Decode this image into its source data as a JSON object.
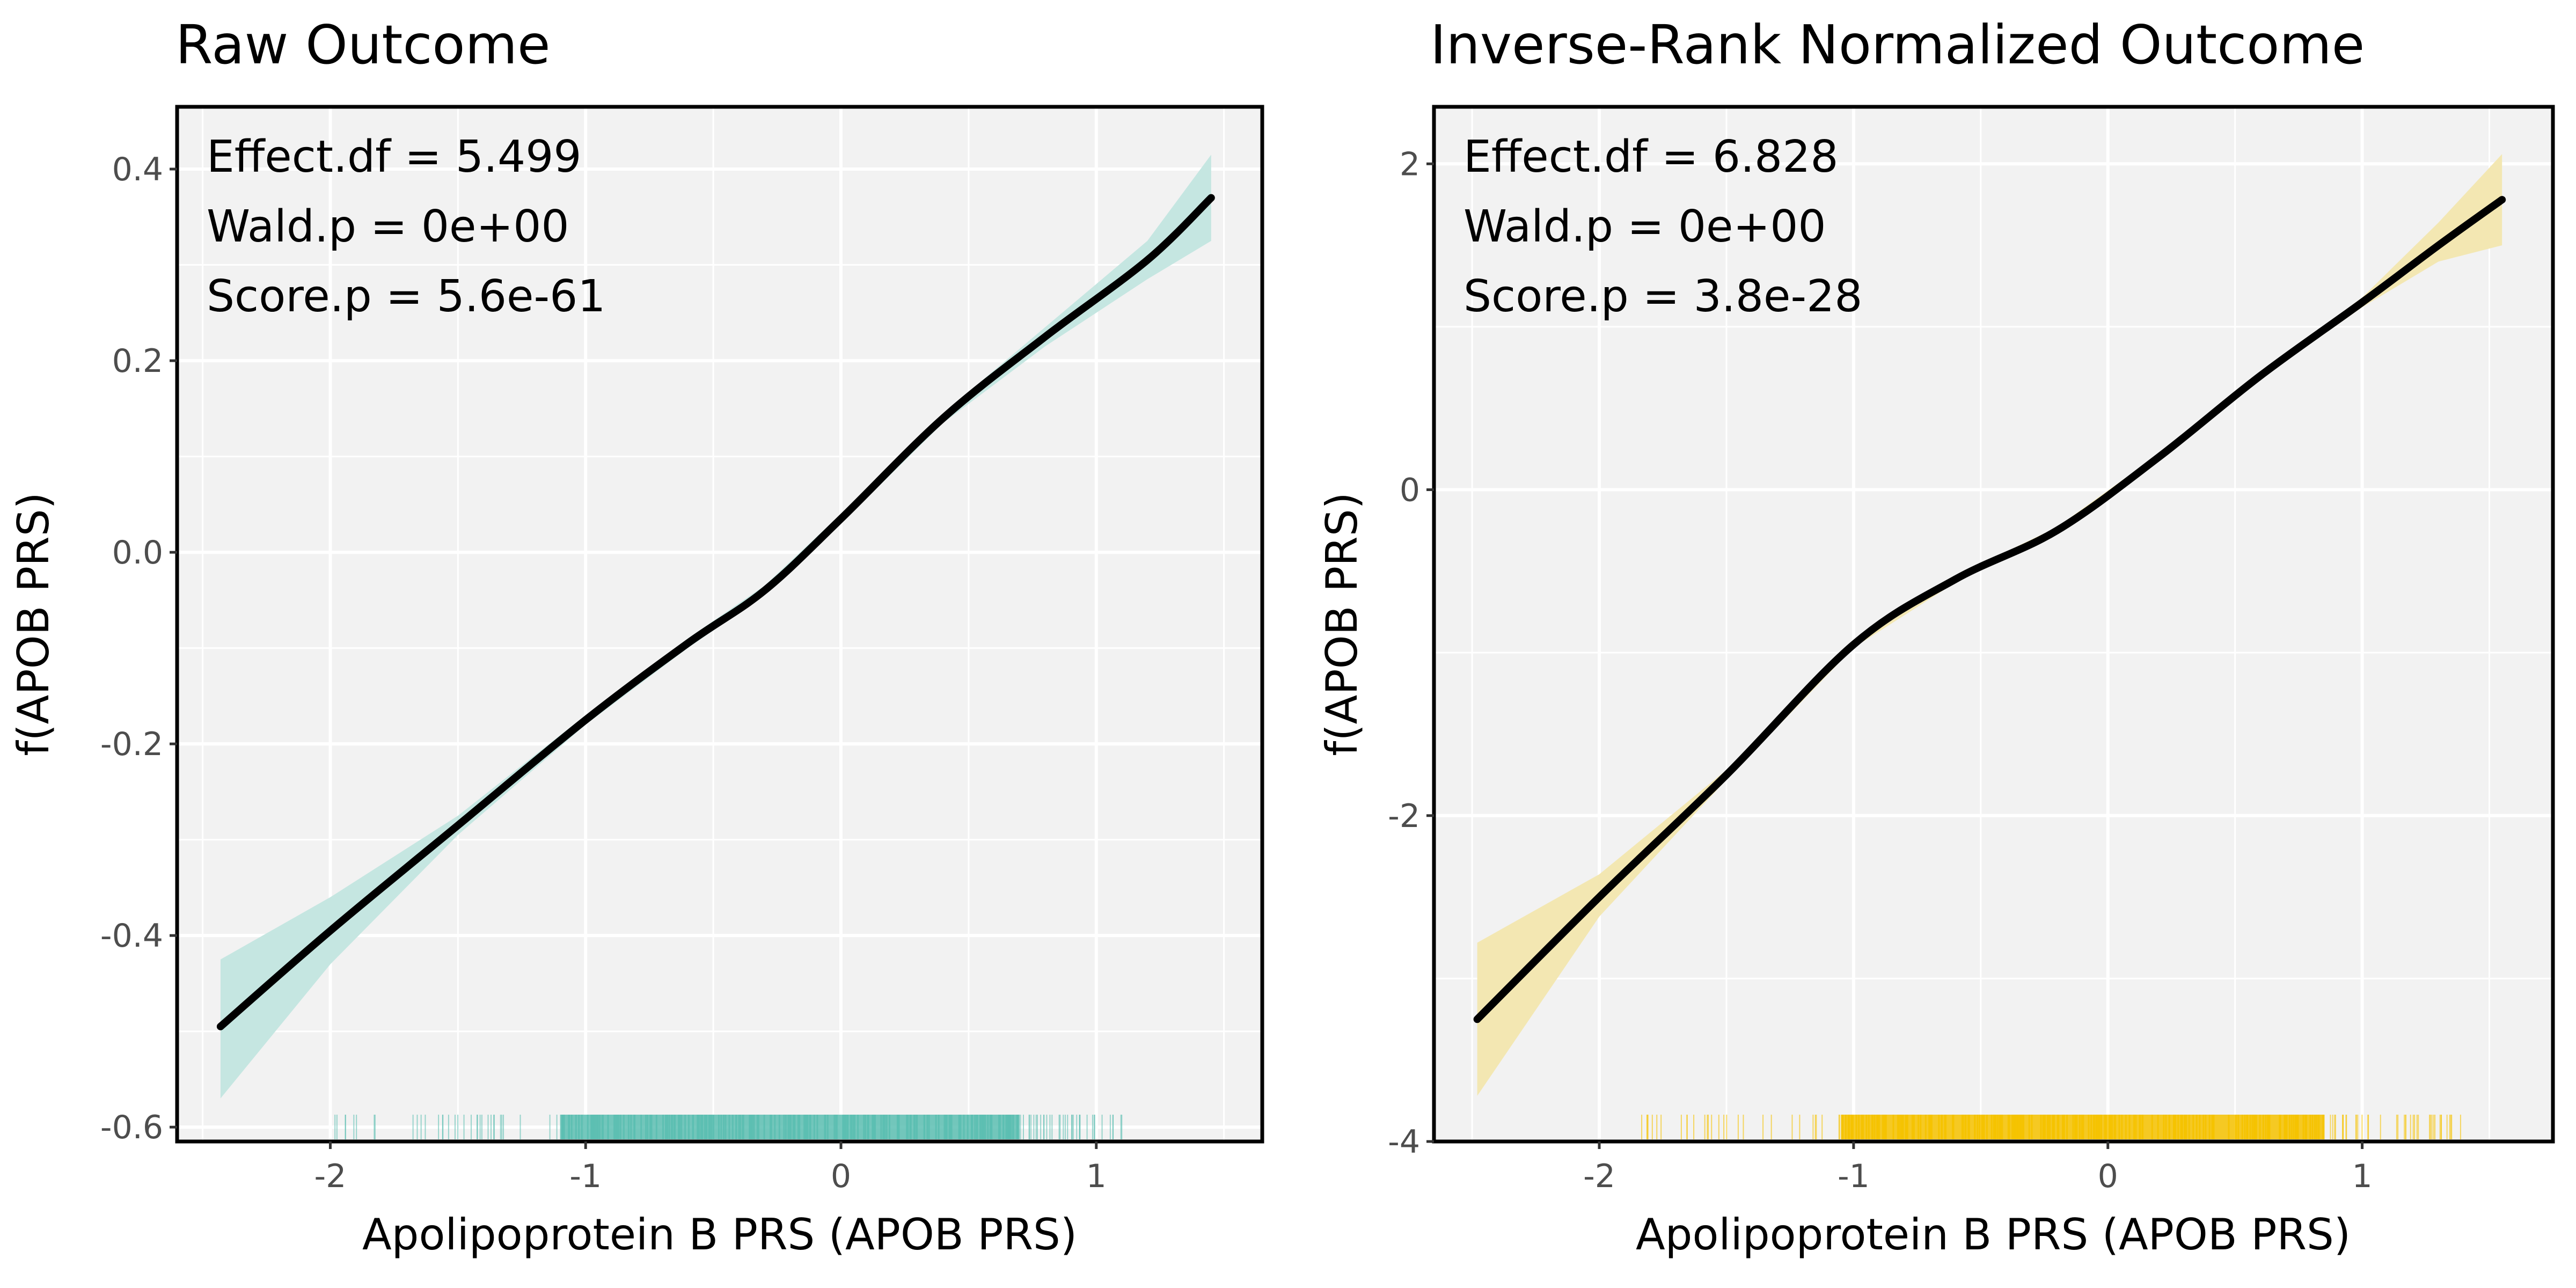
{
  "chart_data": [
    {
      "type": "line",
      "title": "Raw Outcome",
      "xlabel": "Apolipoprotein B PRS (APOB PRS)",
      "ylabel": "f(APOB PRS)",
      "xlim": [
        -2.6,
        1.65
      ],
      "ylim": [
        -0.615,
        0.465
      ],
      "xticks": [
        -2,
        -1,
        0,
        1
      ],
      "yticks": [
        -0.6,
        -0.4,
        -0.2,
        0.0,
        0.2,
        0.4
      ],
      "ytick_labels": [
        "-0.6",
        "-0.4",
        "-0.2",
        "0.0",
        "0.2",
        "0.4"
      ],
      "grid": true,
      "annotations": [
        "Effect.df = 5.499",
        "Wald.p = 0e+00",
        "Score.p = 5.6e-61"
      ],
      "band_color": "#c5e6e1",
      "rug_color": "#5cbfb2",
      "line_color": "#000000",
      "series": [
        {
          "name": "fit",
          "x": [
            -2.43,
            -2.0,
            -1.5,
            -1.0,
            -0.6,
            -0.3,
            0.0,
            0.4,
            0.8,
            1.2,
            1.45
          ],
          "y": [
            -0.495,
            -0.395,
            -0.285,
            -0.175,
            -0.095,
            -0.04,
            0.035,
            0.14,
            0.225,
            0.305,
            0.37
          ],
          "lower": [
            -0.57,
            -0.43,
            -0.295,
            -0.18,
            -0.1,
            -0.045,
            0.03,
            0.135,
            0.215,
            0.285,
            0.325
          ],
          "upper": [
            -0.425,
            -0.36,
            -0.275,
            -0.17,
            -0.09,
            -0.035,
            0.04,
            0.145,
            0.235,
            0.325,
            0.415
          ]
        }
      ],
      "rug": {
        "min": -2.05,
        "max": 1.1,
        "dense_min": -1.1,
        "dense_max": 0.7
      }
    },
    {
      "type": "line",
      "title": "Inverse-Rank Normalized Outcome",
      "xlabel": "Apolipoprotein B PRS (APOB PRS)",
      "ylabel": "f(APOB PRS)",
      "xlim": [
        -2.65,
        1.75
      ],
      "ylim": [
        -4.0,
        2.35
      ],
      "xticks": [
        -2,
        -1,
        0,
        1
      ],
      "yticks": [
        -4,
        -2,
        0,
        2
      ],
      "ytick_labels": [
        "-4",
        "-2",
        "0",
        "2"
      ],
      "grid": true,
      "annotations": [
        "Effect.df = 6.828",
        "Wald.p = 0e+00",
        "Score.p = 3.8e-28"
      ],
      "band_color": "#f3e7b2",
      "rug_color": "#f6c300",
      "line_color": "#000000",
      "series": [
        {
          "name": "fit",
          "x": [
            -2.48,
            -2.0,
            -1.5,
            -1.0,
            -0.6,
            -0.2,
            0.2,
            0.6,
            1.0,
            1.3,
            1.55
          ],
          "y": [
            -3.25,
            -2.5,
            -1.75,
            -0.95,
            -0.55,
            -0.25,
            0.2,
            0.7,
            1.15,
            1.5,
            1.78
          ],
          "lower": [
            -3.72,
            -2.62,
            -1.78,
            -0.97,
            -0.57,
            -0.27,
            0.18,
            0.68,
            1.12,
            1.4,
            1.5
          ],
          "upper": [
            -2.78,
            -2.36,
            -1.72,
            -0.93,
            -0.53,
            -0.23,
            0.22,
            0.72,
            1.18,
            1.64,
            2.06
          ]
        }
      ],
      "rug": {
        "min": -1.9,
        "max": 1.4,
        "dense_min": -1.05,
        "dense_max": 0.85
      }
    }
  ]
}
